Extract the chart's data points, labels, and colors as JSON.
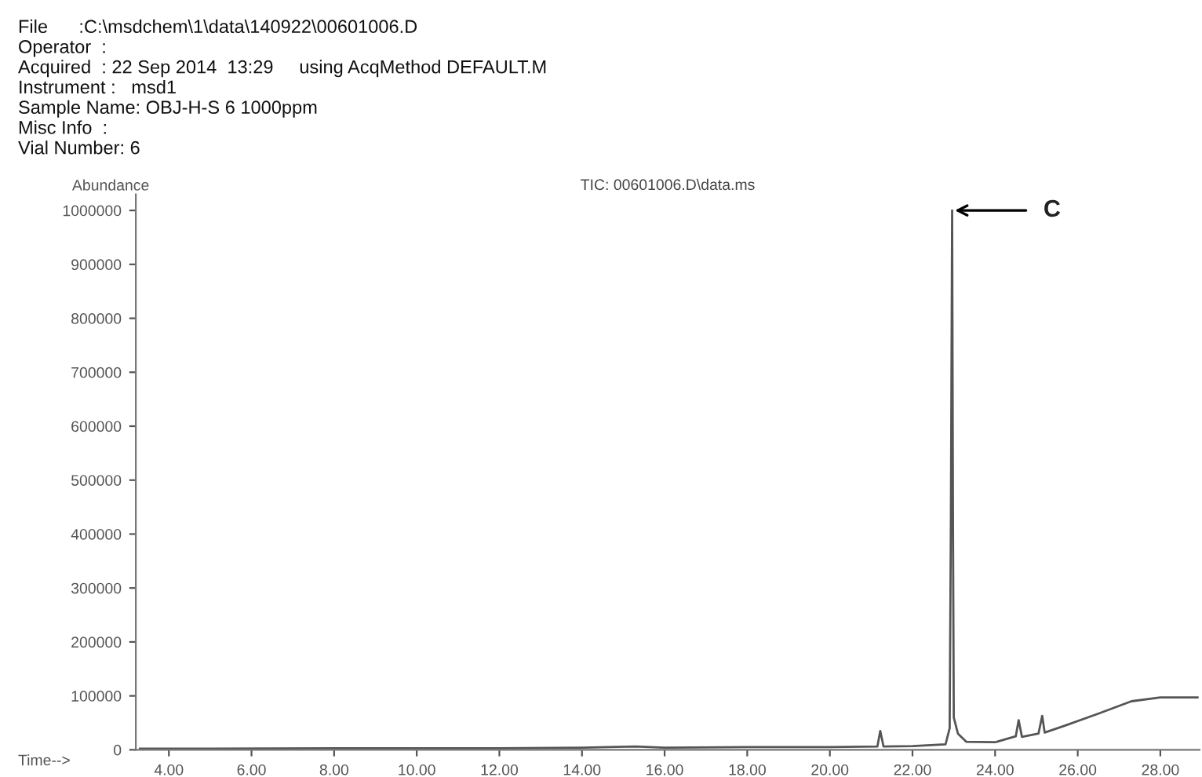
{
  "chart_data": {
    "type": "line",
    "title": "TIC: 00601006.D\\data.ms",
    "xlabel": "Time-->",
    "ylabel": "Abundance",
    "x": [
      3.3,
      5,
      8,
      10,
      12,
      14,
      15.3,
      16,
      18,
      20,
      21.15,
      21.22,
      21.3,
      22,
      22.8,
      22.9,
      22.93,
      22.96,
      22.98,
      23.0,
      23.1,
      23.3,
      24.0,
      24.5,
      24.57,
      24.65,
      25.05,
      25.14,
      25.2,
      25.7,
      26.5,
      27.3,
      28.0,
      28.9
    ],
    "series": [
      {
        "color": "#555555",
        "values": [
          2000,
          2000,
          3000,
          3000,
          3000,
          4000,
          6000,
          4000,
          5000,
          5000,
          6000,
          35000,
          6000,
          7000,
          10000,
          40000,
          430000,
          1000000,
          420000,
          60000,
          30000,
          15000,
          14000,
          25000,
          55000,
          24000,
          30000,
          63000,
          32000,
          45000,
          67000,
          90000,
          97000,
          97000
        ]
      }
    ],
    "xlim": [
      3.2,
      28.95
    ],
    "ylim": [
      0,
      1030000
    ],
    "xticks": [
      {
        "value": 4,
        "label": "4.00"
      },
      {
        "value": 6,
        "label": "6.00"
      },
      {
        "value": 8,
        "label": "8.00"
      },
      {
        "value": 10,
        "label": "10.00"
      },
      {
        "value": 12,
        "label": "12.00"
      },
      {
        "value": 14,
        "label": "14.00"
      },
      {
        "value": 16,
        "label": "16.00"
      },
      {
        "value": 18,
        "label": "18.00"
      },
      {
        "value": 20,
        "label": "20.00"
      },
      {
        "value": 22,
        "label": "22.00"
      },
      {
        "value": 24,
        "label": "24.00"
      },
      {
        "value": 26,
        "label": "26.00"
      },
      {
        "value": 28,
        "label": "28.00"
      }
    ],
    "yticks": [
      0,
      100000,
      200000,
      300000,
      400000,
      500000,
      600000,
      700000,
      800000,
      900000,
      1000000
    ],
    "grid": false,
    "legend": false,
    "marker": "none",
    "line_style": "solid",
    "annotations": [
      "File      :C:\\msdchem\\1\\data\\140922\\00601006.D",
      "Operator  :",
      "Acquired  : 22 Sep 2014  13:29     using AcqMethod DEFAULT.M",
      "Instrument :   msd1",
      "Sample Name: OBJ-H-S 6 1000ppm",
      "Misc Info  :",
      "Vial Number: 6",
      {
        "text": "C",
        "x": 22.97,
        "y": 1000000
      }
    ]
  }
}
